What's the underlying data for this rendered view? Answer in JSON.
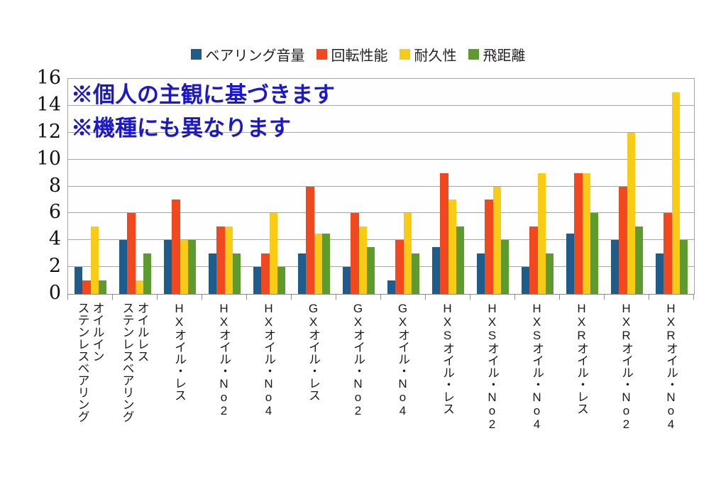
{
  "chart_data": {
    "type": "bar",
    "title": "",
    "legend_position": "top",
    "grid": true,
    "xlabel": "",
    "ylabel": "",
    "ylim": [
      0,
      16
    ],
    "y_ticks": [
      0,
      2,
      4,
      6,
      8,
      10,
      12,
      14,
      16
    ],
    "categories": [
      "オイルイン\nステンレスベアリング",
      "オイルレス\nステンレスベアリング",
      "HXオイル・レス",
      "HXオイル・No2",
      "HXオイル・No4",
      "GXオイル・レス",
      "GXオイル・No2",
      "GXオイル・No4",
      "HXSオイル・レス",
      "HXSオイル・No2",
      "HXSオイル・No4",
      "HXRオイル・レス",
      "HXRオイル・No2",
      "HXRオイル・No4"
    ],
    "series": [
      {
        "name": "ベアリング音量",
        "color": "#1E5C8B",
        "values": [
          2,
          4,
          4,
          3,
          2,
          3,
          2,
          1,
          3.5,
          3,
          2,
          4.5,
          4,
          3
        ]
      },
      {
        "name": "回転性能",
        "color": "#F1481F",
        "values": [
          1,
          6,
          7,
          5,
          3,
          8,
          6,
          4,
          9,
          7,
          5,
          9,
          8,
          6
        ]
      },
      {
        "name": "耐久性",
        "color": "#F8CB17",
        "values": [
          5,
          1,
          4,
          5,
          6,
          4.5,
          5,
          6,
          7,
          8,
          9,
          9,
          12,
          15
        ]
      },
      {
        "name": "飛距離",
        "color": "#5D9B31",
        "values": [
          1,
          3,
          4,
          3,
          2,
          4.5,
          3.5,
          3,
          5,
          4,
          3,
          6,
          5,
          4
        ]
      }
    ]
  },
  "annotation": {
    "line1": "※個人の主観に基づきます",
    "line2": "※機種にも異なります",
    "color": "#1A18C8"
  }
}
